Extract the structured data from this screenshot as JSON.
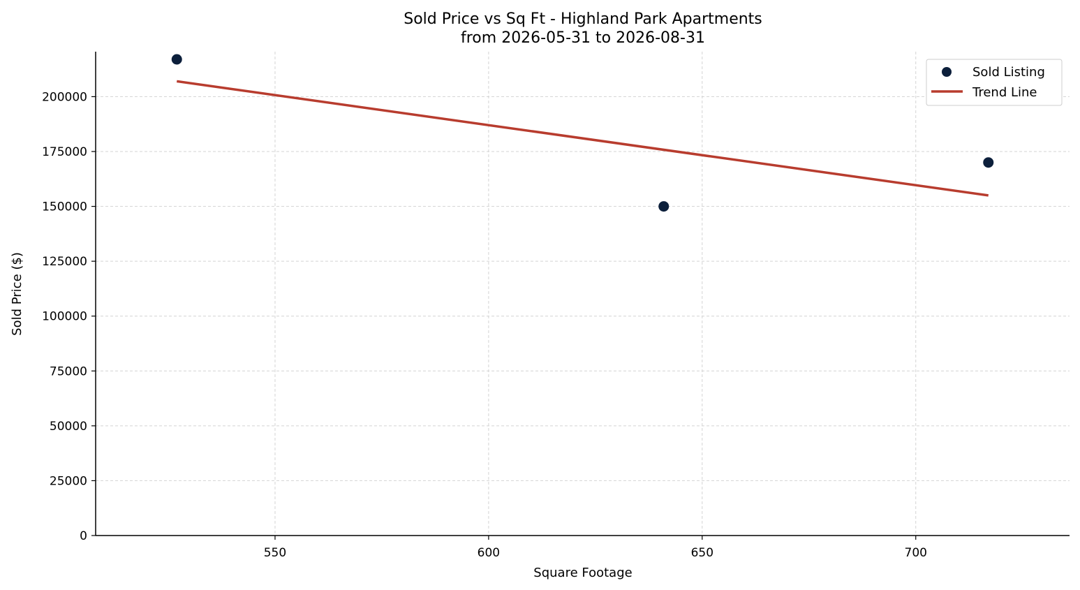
{
  "chart_data": {
    "type": "scatter",
    "title": "Sold Price vs Sq Ft - Highland Park Apartments",
    "subtitle": "from 2026-05-31 to 2026-08-31",
    "xlabel": "Square Footage",
    "ylabel": "Sold Price ($)",
    "xlim": [
      508,
      736
    ],
    "ylim": [
      0,
      220500
    ],
    "x_ticks": [
      550,
      600,
      650,
      700
    ],
    "y_ticks": [
      0,
      25000,
      50000,
      75000,
      100000,
      125000,
      150000,
      175000,
      200000
    ],
    "grid": true,
    "legend_position": "top-right",
    "series": [
      {
        "name": "Sold Listing",
        "kind": "scatter",
        "color": "#0c1f3b",
        "points": [
          {
            "x": 527,
            "y": 217000
          },
          {
            "x": 641,
            "y": 150000
          },
          {
            "x": 717,
            "y": 170000
          }
        ]
      },
      {
        "name": "Trend Line",
        "kind": "line",
        "color": "#b83c2e",
        "points": [
          {
            "x": 527,
            "y": 207000
          },
          {
            "x": 717,
            "y": 155000
          }
        ]
      }
    ]
  }
}
